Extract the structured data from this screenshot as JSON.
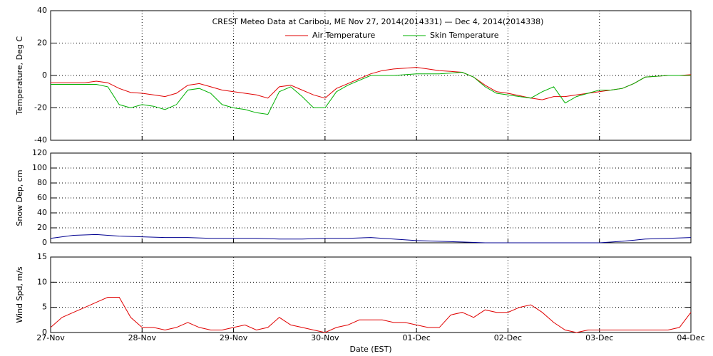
{
  "chart_data": [
    {
      "type": "line",
      "title": "CREST Meteo Data at Caribou, ME   Nov 27, 2014(2014331) — Dec  4, 2014(2014338)",
      "ylabel": "Temperature, Deg C",
      "legend": "top",
      "grid": true,
      "x": [
        0,
        0.125,
        0.25,
        0.375,
        0.5,
        0.625,
        0.75,
        0.875,
        1,
        1.125,
        1.25,
        1.375,
        1.5,
        1.625,
        1.75,
        1.875,
        2,
        2.125,
        2.25,
        2.375,
        2.5,
        2.625,
        2.75,
        2.875,
        3,
        3.125,
        3.25,
        3.375,
        3.5,
        3.625,
        3.75,
        3.875,
        4,
        4.125,
        4.25,
        4.375,
        4.5,
        4.625,
        4.75,
        4.875,
        5,
        5.125,
        5.25,
        5.375,
        5.5,
        5.625,
        5.75,
        5.875,
        6,
        6.125,
        6.25,
        6.375,
        6.5,
        6.625,
        6.75,
        6.875,
        7
      ],
      "series": [
        {
          "name": "Air Temperature",
          "color": "#e00000",
          "values": [
            -4.5,
            -4.5,
            -4.5,
            -4.5,
            -3.5,
            -4.5,
            -8,
            -10.5,
            -11,
            -12,
            -13,
            -11,
            -6,
            -5,
            -7,
            -9,
            -10,
            -11,
            -12,
            -14,
            -7,
            -6,
            -9,
            -12,
            -14,
            -8,
            -5,
            -2,
            1,
            3,
            4,
            4.5,
            5,
            4,
            3,
            2.5,
            2,
            -1,
            -6,
            -10,
            -11,
            -12.5,
            -14,
            -15,
            -13,
            -13,
            -12,
            -11,
            -10,
            -9,
            -8,
            -5,
            -1,
            -0.5,
            0,
            0,
            0.5
          ]
        },
        {
          "name": "Skin Temperature",
          "color": "#00b000",
          "values": [
            -5.5,
            -5.5,
            -5.5,
            -5.5,
            -5.5,
            -7,
            -18,
            -20,
            -18,
            -19,
            -21,
            -18,
            -9,
            -8,
            -11,
            -18,
            -20,
            -21,
            -23,
            -24,
            -10,
            -7,
            -13,
            -20,
            -20,
            -10,
            -6,
            -3,
            0,
            0,
            0,
            0.5,
            1,
            1,
            1,
            1.5,
            2,
            -1,
            -7,
            -11,
            -12,
            -13,
            -14,
            -10,
            -7,
            -17,
            -13,
            -11,
            -9,
            -9,
            -8,
            -5,
            -1,
            -0.5,
            0,
            0,
            0
          ]
        }
      ],
      "xlim": [
        0,
        7
      ],
      "xticks": [
        0,
        1,
        2,
        3,
        4,
        5,
        6,
        7
      ],
      "ylim": [
        -40,
        40
      ],
      "yticks": [
        -40,
        -20,
        0,
        20,
        40
      ]
    },
    {
      "type": "line",
      "ylabel": "Snow Dep, cm",
      "grid": true,
      "x": [
        0,
        0.25,
        0.5,
        0.75,
        1,
        1.25,
        1.5,
        1.75,
        2,
        2.25,
        2.5,
        2.75,
        3,
        3.25,
        3.5,
        3.75,
        4,
        4.25,
        4.5,
        4.75,
        5,
        5.25,
        5.5,
        5.75,
        6,
        6.25,
        6.5,
        6.75,
        7
      ],
      "series": [
        {
          "color": "#000090",
          "values": [
            6,
            10,
            11,
            9,
            8,
            7,
            7,
            6,
            6,
            6,
            5,
            5,
            6,
            6,
            7,
            5,
            3,
            2,
            1,
            0,
            0,
            0,
            0,
            0,
            0,
            2,
            5,
            6,
            7
          ]
        }
      ],
      "xlim": [
        0,
        7
      ],
      "xticks": [
        0,
        1,
        2,
        3,
        4,
        5,
        6,
        7
      ],
      "ylim": [
        0,
        120
      ],
      "yticks": [
        0,
        20,
        40,
        60,
        80,
        100,
        120
      ]
    },
    {
      "type": "line",
      "ylabel": "Wind Spd, m/s",
      "xlabel": "Date (EST)",
      "grid": true,
      "x": [
        0,
        0.125,
        0.25,
        0.375,
        0.5,
        0.625,
        0.75,
        0.875,
        1,
        1.125,
        1.25,
        1.375,
        1.5,
        1.625,
        1.75,
        1.875,
        2,
        2.125,
        2.25,
        2.375,
        2.5,
        2.625,
        2.75,
        2.875,
        3,
        3.125,
        3.25,
        3.375,
        3.5,
        3.625,
        3.75,
        3.875,
        4,
        4.125,
        4.25,
        4.375,
        4.5,
        4.625,
        4.75,
        4.875,
        5,
        5.125,
        5.25,
        5.375,
        5.5,
        5.625,
        5.75,
        5.875,
        6,
        6.125,
        6.25,
        6.375,
        6.5,
        6.625,
        6.75,
        6.875,
        7
      ],
      "series": [
        {
          "color": "#e00000",
          "values": [
            1,
            3,
            4,
            5,
            6,
            7,
            7,
            3,
            1,
            1,
            0.5,
            1,
            2,
            1,
            0.5,
            0.5,
            1,
            1.5,
            0.5,
            1,
            3,
            1.5,
            1,
            0.5,
            0,
            1,
            1.5,
            2.5,
            2.5,
            2.5,
            2,
            2,
            1.5,
            1,
            1,
            3.5,
            4,
            3,
            4.5,
            4,
            4,
            5,
            5.5,
            4,
            2,
            0.5,
            0,
            0.5,
            0.5,
            0.5,
            0.5,
            0.5,
            0.5,
            0.5,
            0.5,
            1,
            4
          ]
        }
      ],
      "xlim": [
        0,
        7
      ],
      "xticks": [
        {
          "value": 0,
          "label": "27-Nov"
        },
        {
          "value": 1,
          "label": "28-Nov"
        },
        {
          "value": 2,
          "label": "29-Nov"
        },
        {
          "value": 3,
          "label": "30-Nov"
        },
        {
          "value": 4,
          "label": "01-Dec"
        },
        {
          "value": 5,
          "label": "02-Dec"
        },
        {
          "value": 6,
          "label": "03-Dec"
        },
        {
          "value": 7,
          "label": "04-Dec"
        }
      ],
      "ylim": [
        0,
        15
      ],
      "yticks": [
        0,
        5,
        10,
        15
      ]
    }
  ]
}
